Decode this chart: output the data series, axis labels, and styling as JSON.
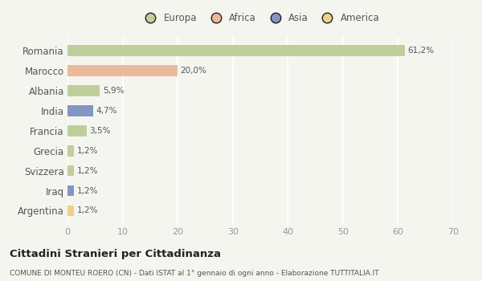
{
  "categories": [
    "Romania",
    "Marocco",
    "Albania",
    "India",
    "Francia",
    "Grecia",
    "Svizzera",
    "Iraq",
    "Argentina"
  ],
  "values": [
    61.2,
    20.0,
    5.9,
    4.7,
    3.5,
    1.2,
    1.2,
    1.2,
    1.2
  ],
  "labels": [
    "61,2%",
    "20,0%",
    "5,9%",
    "4,7%",
    "3,5%",
    "1,2%",
    "1,2%",
    "1,2%",
    "1,2%"
  ],
  "colors": [
    "#b5c98e",
    "#e8b08a",
    "#b5c98e",
    "#6f86bc",
    "#b5c98e",
    "#b5c98e",
    "#b5c98e",
    "#6f86bc",
    "#f0c97a"
  ],
  "legend_items": [
    {
      "label": "Europa",
      "color": "#b5c98e"
    },
    {
      "label": "Africa",
      "color": "#e8b08a"
    },
    {
      "label": "Asia",
      "color": "#6f86bc"
    },
    {
      "label": "America",
      "color": "#f0c97a"
    }
  ],
  "xlim": [
    0,
    70
  ],
  "xticks": [
    0,
    10,
    20,
    30,
    40,
    50,
    60,
    70
  ],
  "title": "Cittadini Stranieri per Cittadinanza",
  "subtitle": "COMUNE DI MONTEU ROERO (CN) - Dati ISTAT al 1° gennaio di ogni anno - Elaborazione TUTTITALIA.IT",
  "background_color": "#f5f5f0",
  "grid_color": "#ffffff",
  "bar_height": 0.55,
  "label_color": "#555555",
  "tick_color": "#999999"
}
